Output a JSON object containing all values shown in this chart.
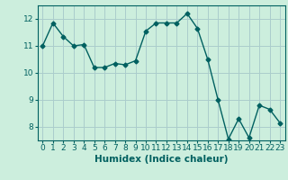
{
  "x": [
    0,
    1,
    2,
    3,
    4,
    5,
    6,
    7,
    8,
    9,
    10,
    11,
    12,
    13,
    14,
    15,
    16,
    17,
    18,
    19,
    20,
    21,
    22,
    23
  ],
  "y": [
    11.0,
    11.85,
    11.35,
    11.0,
    11.05,
    10.2,
    10.2,
    10.35,
    10.3,
    10.45,
    11.55,
    11.85,
    11.85,
    11.85,
    12.2,
    11.65,
    10.5,
    9.0,
    7.55,
    8.3,
    7.6,
    8.8,
    8.65,
    8.15
  ],
  "line_color": "#006060",
  "marker": "D",
  "markersize": 2.5,
  "linewidth": 1.0,
  "bg_color": "#cceedd",
  "grid_color": "#aacccc",
  "xlabel": "Humidex (Indice chaleur)",
  "ylim": [
    7.5,
    12.5
  ],
  "xlim": [
    -0.5,
    23.5
  ],
  "yticks": [
    8,
    9,
    10,
    11,
    12
  ],
  "xticks": [
    0,
    1,
    2,
    3,
    4,
    5,
    6,
    7,
    8,
    9,
    10,
    11,
    12,
    13,
    14,
    15,
    16,
    17,
    18,
    19,
    20,
    21,
    22,
    23
  ],
  "xlabel_fontsize": 7.5,
  "tick_fontsize": 6.5
}
